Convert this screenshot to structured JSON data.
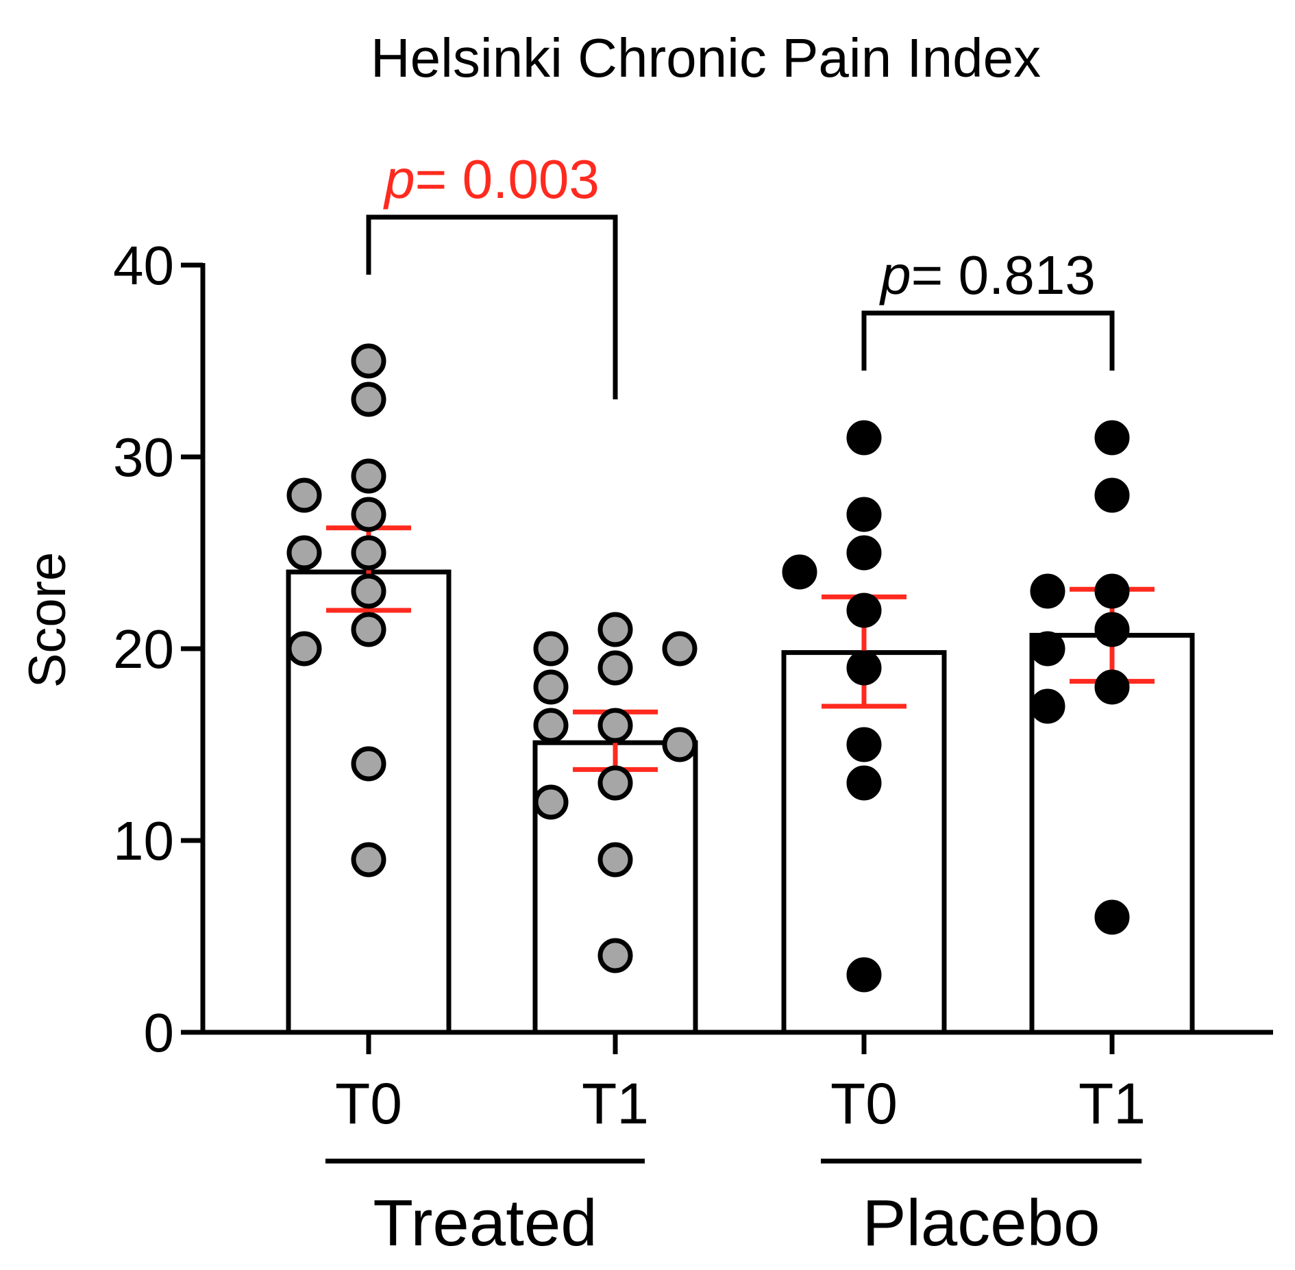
{
  "chart_data": {
    "type": "bar",
    "title": "Helsinki Chronic Pain Index",
    "ylabel": "Score",
    "xlabel": "",
    "ylim": [
      0,
      40
    ],
    "yticks": [
      0,
      10,
      20,
      30,
      40
    ],
    "categories": [
      "T0",
      "T1",
      "T0",
      "T1"
    ],
    "groups": [
      {
        "name": "Treated",
        "categories": [
          0,
          1
        ]
      },
      {
        "name": "Placebo",
        "categories": [
          2,
          3
        ]
      }
    ],
    "bars": [
      {
        "label": "T0",
        "group": "Treated",
        "mean": 24.0,
        "sem_low": 22.0,
        "sem_high": 26.3,
        "points": [
          35,
          33,
          29,
          28,
          27,
          25,
          25,
          23,
          21,
          20,
          14,
          9
        ]
      },
      {
        "label": "T1",
        "group": "Treated",
        "mean": 15.1,
        "sem_low": 13.7,
        "sem_high": 16.7,
        "points": [
          21,
          20,
          20,
          19,
          18,
          16,
          16,
          15,
          13,
          12,
          9,
          4
        ]
      },
      {
        "label": "T0",
        "group": "Placebo",
        "mean": 19.8,
        "sem_low": 17.0,
        "sem_high": 22.7,
        "points": [
          31,
          27,
          25,
          24,
          22,
          19,
          15,
          13,
          3
        ]
      },
      {
        "label": "T1",
        "group": "Placebo",
        "mean": 20.7,
        "sem_low": 18.3,
        "sem_high": 23.1,
        "points": [
          31,
          28,
          23,
          23,
          21,
          20,
          18,
          17,
          6
        ]
      }
    ],
    "comparisons": [
      {
        "prefix": "p",
        "text": "= 0.003",
        "from": 0,
        "to": 1,
        "level": 42.5,
        "left_end": 39.5,
        "right_end": 33,
        "color": "#ff2a1f"
      },
      {
        "prefix": "p",
        "text": "= 0.813",
        "from": 2,
        "to": 3,
        "level": 37.5,
        "left_end": 34.5,
        "right_end": 34.5,
        "color": "#000000"
      }
    ],
    "colors": {
      "treated_points": "#a6a6a6",
      "placebo_points": "#000000",
      "error_bars": "#ff2a1f",
      "bars_fill": "#ffffff",
      "axes": "#000000"
    }
  }
}
